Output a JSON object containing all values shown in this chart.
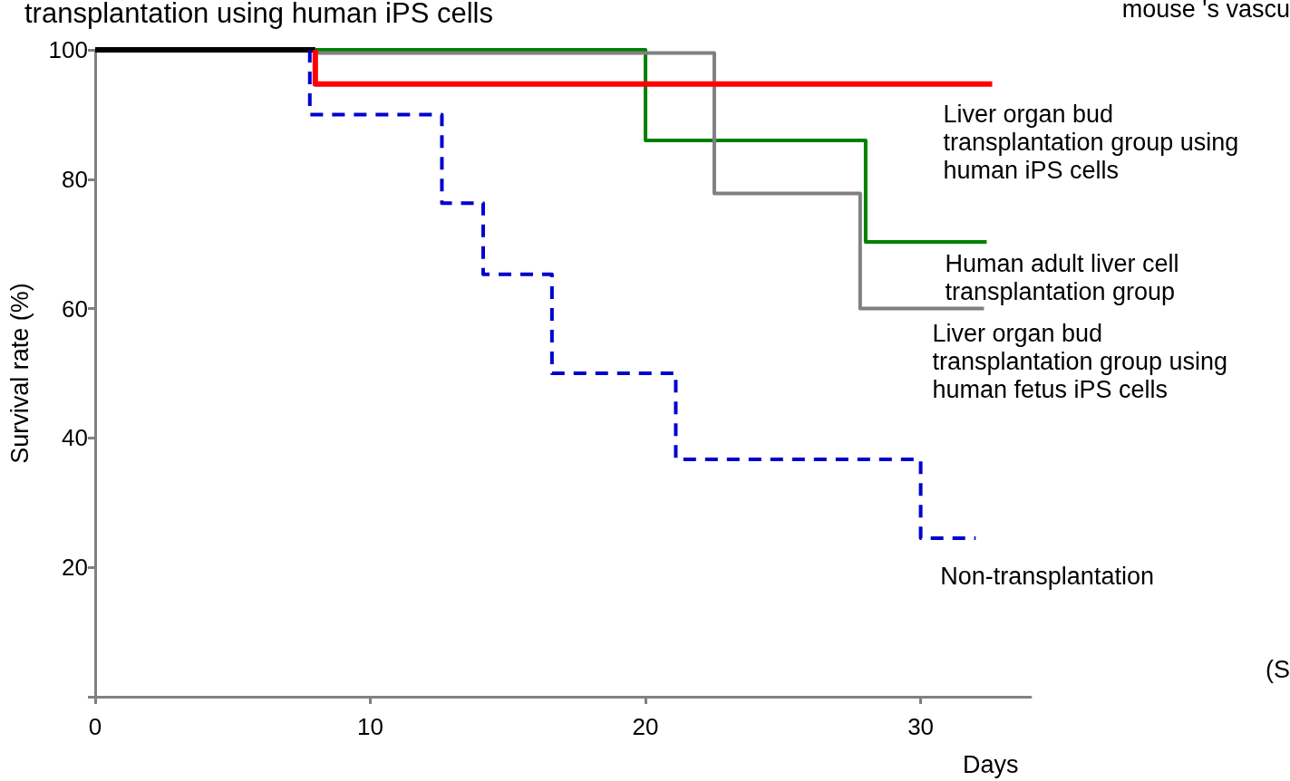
{
  "chart_data": {
    "type": "step",
    "title": "transplantation using human iPS cells",
    "xlabel": "Days",
    "ylabel": "Survival rate (%)",
    "annotations": [
      "mouse 's vascu",
      "(S"
    ],
    "xlim": [
      0,
      34
    ],
    "xticks": [
      0,
      10,
      20,
      30
    ],
    "ylim": [
      0,
      100
    ],
    "yticks": [
      {
        "value": 0,
        "label": null
      },
      20,
      40,
      60,
      80,
      100
    ],
    "grid": false,
    "legend": false,
    "marker": "none",
    "series": [
      {
        "color": "#000000",
        "x": [
          0,
          8
        ],
        "values": [
          100,
          100
        ],
        "line_style": "solid"
      },
      {
        "name": "Human adult liver cell transplantation group",
        "color": "#008000",
        "x": [
          8,
          20,
          28,
          32.4
        ],
        "values": [
          100,
          86,
          70.3,
          70.3
        ],
        "line_style": "solid"
      },
      {
        "name": "Liver organ bud transplantation group using human fetus iPS cells",
        "color": "#808080",
        "x": [
          8,
          22.5,
          27.8,
          32.3
        ],
        "values": [
          99.5,
          77.8,
          60,
          60
        ],
        "line_style": "solid"
      },
      {
        "name": "Non-transplantation",
        "color": "#0000cc",
        "x": [
          7.8,
          7.8,
          12.6,
          14.1,
          16.6,
          21.1,
          30,
          32
        ],
        "values": [
          100,
          90,
          76.3,
          65.3,
          50,
          36.7,
          24.5,
          24.5
        ],
        "line_style": "dashed"
      },
      {
        "name": "Liver organ bud transplantation group using human iPS cells",
        "color": "#ff0000",
        "x": [
          8,
          8,
          32.6
        ],
        "values": [
          100,
          94.7,
          94.7
        ],
        "line_style": "solid"
      }
    ]
  }
}
